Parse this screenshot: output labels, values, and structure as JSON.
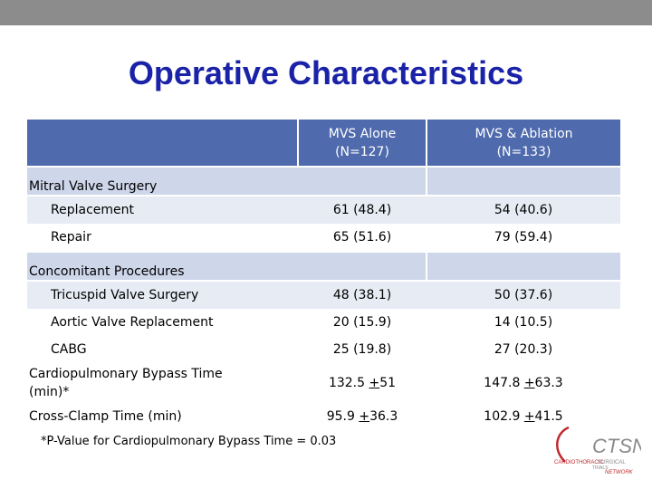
{
  "slide": {
    "title": "Operative Characteristics",
    "footnote": "*P-Value for Cardiopulmonary Bypass Time = 0.03"
  },
  "table": {
    "columns": [
      {
        "label": "MVS Alone",
        "sub": "(N=127)"
      },
      {
        "label": "MVS & Ablation",
        "sub": "(N=133)"
      }
    ],
    "sections": {
      "mitral": "Mitral Valve Surgery",
      "concomitant": "Concomitant Procedures"
    },
    "rows": {
      "replacement": {
        "label": "Replacement",
        "mvs": "61 (48.4)",
        "abl": "54 (40.6)"
      },
      "repair": {
        "label": "Repair",
        "mvs": "65 (51.6)",
        "abl": "79 (59.4)"
      },
      "tricuspid": {
        "label": "Tricuspid Valve Surgery",
        "mvs": "48 (38.1)",
        "abl": "50 (37.6)"
      },
      "aortic": {
        "label": "Aortic Valve Replacement",
        "mvs": "20 (15.9)",
        "abl": "14 (10.5)"
      },
      "cabg": {
        "label": "CABG",
        "mvs": "25 (19.8)",
        "abl": "27 (20.3)"
      },
      "bypass": {
        "label_line1": "Cardiopulmonary Bypass Time",
        "label_line2": "(min)*",
        "mvs_mean": "132.5 ",
        "mvs_pm": "+",
        "mvs_sd": "51",
        "abl_mean": "147.8 ",
        "abl_pm": "+",
        "abl_sd": "63.3"
      },
      "clamp": {
        "label": "Cross-Clamp Time (min)",
        "mvs_mean": "95.9 ",
        "mvs_pm": "+",
        "mvs_sd": "36.3",
        "abl_mean": "102.9 ",
        "abl_pm": "+",
        "abl_sd": "41.5"
      }
    }
  },
  "logo": {
    "name": "CTSN",
    "line1": "CARDIOTHORACIC",
    "line2": "SURGICAL",
    "line3": "TRIALS",
    "line4": "NETWORK",
    "color_red": "#c0282d",
    "color_gray": "#8a8a8a"
  },
  "colors": {
    "title": "#1a23a8",
    "header_bg": "#4f6aad",
    "row_light": "#e7ebf4",
    "section_bg": "#ced6ea"
  }
}
